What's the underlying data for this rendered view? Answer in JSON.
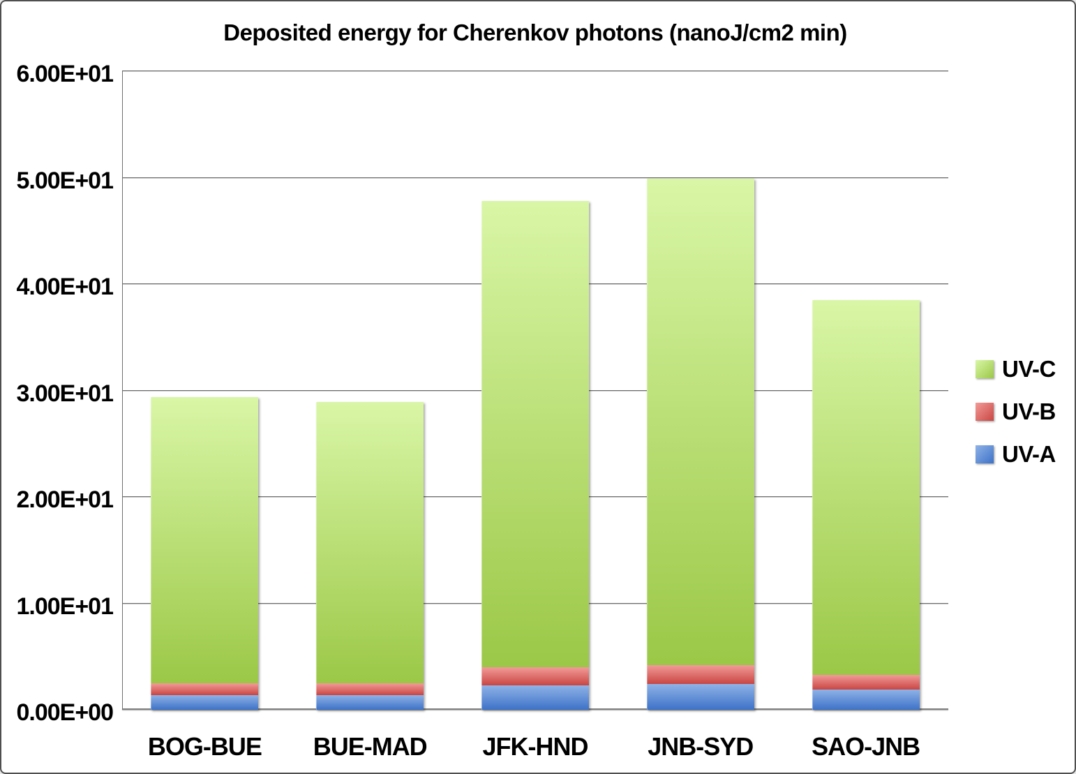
{
  "chart_data": {
    "type": "bar",
    "stacked": true,
    "title": "Deposited energy for Cherenkov photons (nanoJ/cm2 min)",
    "categories": [
      "BOG-BUE",
      "BUE-MAD",
      "JFK-HND",
      "JNB-SYD",
      "SAO-JNB"
    ],
    "series": [
      {
        "name": "UV-A",
        "values": [
          1.4,
          1.4,
          2.3,
          2.4,
          1.9
        ],
        "color_top": "#8fb2e6",
        "color_bottom": "#3d72c8"
      },
      {
        "name": "UV-B",
        "values": [
          1.1,
          1.1,
          1.7,
          1.8,
          1.4
        ],
        "color_top": "#f29b98",
        "color_bottom": "#c94643"
      },
      {
        "name": "UV-C",
        "values": [
          26.9,
          26.4,
          43.8,
          45.7,
          35.2
        ],
        "color_top": "#d9f6a6",
        "color_bottom": "#9bc847"
      }
    ],
    "totals": [
      29.4,
      28.9,
      47.8,
      49.9,
      38.5
    ],
    "ylim": [
      0,
      60
    ],
    "ytick_step": 10,
    "ytick_labels": [
      "0.00E+00",
      "1.00E+01",
      "2.00E+01",
      "3.00E+01",
      "4.00E+01",
      "5.00E+01",
      "6.00E+01"
    ],
    "xlabel": "",
    "ylabel": "",
    "grid": "horizontal",
    "legend": {
      "position": "right",
      "entries": [
        "UV-C",
        "UV-B",
        "UV-A"
      ]
    },
    "colors": {
      "text": "#000000",
      "gridline": "#6e6e6e",
      "background": "#ffffff",
      "frame_border": "#4e4e4e"
    }
  }
}
